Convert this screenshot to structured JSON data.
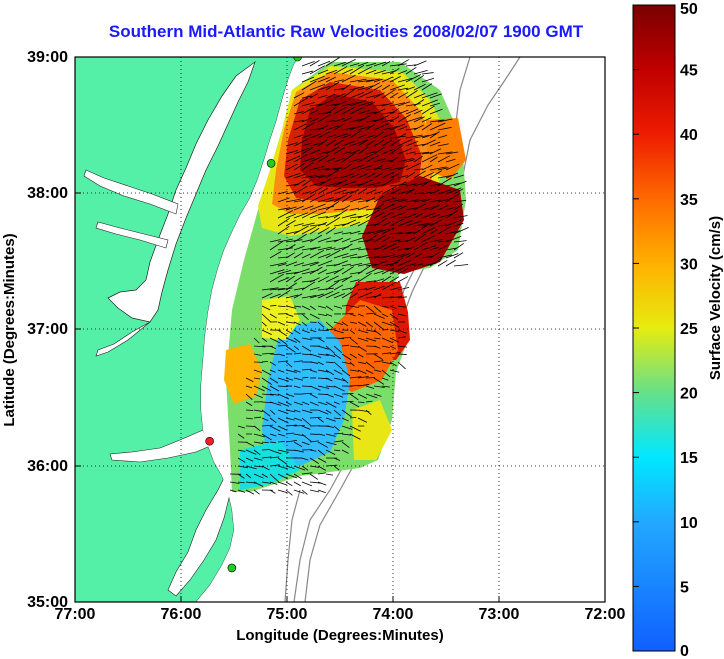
{
  "title": "Southern Mid-Atlantic Raw Velocities 2008/02/07 1900 GMT",
  "map": {
    "xlabel": "Longitude (Degrees:Minutes)",
    "ylabel": "Latitude (Degrees:Minutes)",
    "x_ticks": [
      "77:00",
      "76:00",
      "75:00",
      "74:00",
      "73:00",
      "72:00"
    ],
    "y_ticks": [
      "39:00",
      "38:00",
      "37:00",
      "36:00",
      "35:00"
    ],
    "lon_range": [
      -77,
      -72
    ],
    "lat_range": [
      35,
      39
    ],
    "land_color": "#55f0a8",
    "grid": true,
    "stations": [
      {
        "color": "#22cc22",
        "lon": -74.9,
        "lat": 39.0
      },
      {
        "color": "#22cc22",
        "lon": -75.15,
        "lat": 38.22
      },
      {
        "color": "#ee2222",
        "lon": -75.73,
        "lat": 36.18
      },
      {
        "color": "#22cc22",
        "lon": -75.52,
        "lat": 35.25
      }
    ]
  },
  "colorbar": {
    "label": "Surface Velocity (cm/s)",
    "ticks": [
      "50",
      "45",
      "40",
      "35",
      "30",
      "25",
      "20",
      "15",
      "10",
      "5",
      "0"
    ],
    "range": [
      0,
      50
    ]
  }
}
